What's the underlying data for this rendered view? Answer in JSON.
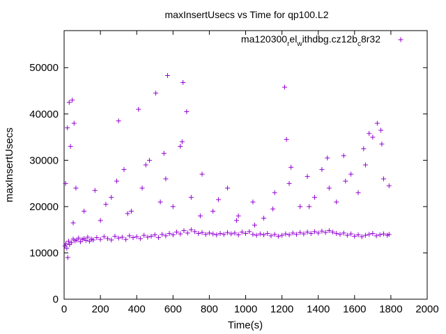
{
  "chart_data": {
    "type": "scatter",
    "title": "maxInsertUsecs vs Time for qp100.L2",
    "xlabel": "Time(s)",
    "ylabel": "maxInsertUsecs",
    "xlim": [
      0,
      2000
    ],
    "ylim": [
      0,
      58000
    ],
    "xticks": [
      "0",
      "200",
      "400",
      "600",
      "800",
      "1000",
      "1200",
      "1400",
      "1600",
      "1800",
      "2000"
    ],
    "yticks": [
      "0",
      "10000",
      "20000",
      "30000",
      "40000",
      "50000"
    ],
    "legend_position": "top-right",
    "marker": "+",
    "grid": false,
    "colors": {
      "series": "#9400d3",
      "axes": "#000000"
    },
    "series": [
      {
        "name_parts": {
          "a": "ma120300",
          "b": "r",
          "c": "el",
          "d": "w",
          "e": "ithdbg.cz12b",
          "f": "c",
          "g": "8r32"
        },
        "x": [
          5,
          10,
          15,
          20,
          25,
          30,
          40,
          50,
          60,
          70,
          80,
          90,
          100,
          110,
          120,
          130,
          140,
          150,
          160,
          180,
          200,
          220,
          240,
          260,
          280,
          300,
          320,
          340,
          360,
          380,
          400,
          420,
          440,
          460,
          480,
          500,
          520,
          540,
          560,
          580,
          600,
          620,
          640,
          660,
          680,
          700,
          720,
          740,
          760,
          780,
          800,
          820,
          840,
          860,
          880,
          900,
          920,
          940,
          960,
          980,
          1000,
          1020,
          1040,
          1060,
          1080,
          1100,
          1120,
          1140,
          1160,
          1180,
          1200,
          1220,
          1240,
          1260,
          1280,
          1300,
          1320,
          1340,
          1360,
          1380,
          1400,
          1420,
          1440,
          1460,
          1480,
          1500,
          1520,
          1540,
          1560,
          1580,
          1600,
          1620,
          1640,
          1660,
          1680,
          1700,
          1720,
          1740,
          1760,
          1780,
          1790,
          8,
          18,
          28,
          35,
          45,
          55,
          65,
          300,
          410,
          505,
          570,
          655,
          675,
          1215,
          1225,
          1680,
          1725,
          1745,
          200,
          260,
          330,
          370,
          430,
          470,
          530,
          560,
          600,
          640,
          700,
          760,
          820,
          900,
          960,
          1040,
          1100,
          1160,
          1240,
          1300,
          1340,
          1380,
          1420,
          1460,
          1500,
          1540,
          1580,
          1620,
          1660,
          1700,
          1760,
          1790,
          50,
          110,
          170,
          230,
          290,
          350,
          450,
          550,
          650,
          750,
          850,
          950,
          1050,
          1150,
          1250,
          1350,
          1450,
          1550,
          1650,
          1750
        ],
        "y": [
          11500,
          12000,
          11000,
          9000,
          12500,
          11800,
          12200,
          13000,
          12600,
          12800,
          13200,
          12400,
          12900,
          13100,
          12700,
          13400,
          12500,
          13000,
          12800,
          13300,
          12900,
          13500,
          13100,
          12800,
          13600,
          13200,
          13400,
          12900,
          13700,
          13300,
          13500,
          13100,
          13800,
          13400,
          13600,
          13900,
          13300,
          14000,
          13700,
          14200,
          13900,
          14500,
          14100,
          14800,
          14300,
          15000,
          14600,
          14200,
          14400,
          14000,
          14300,
          14100,
          13900,
          14200,
          14000,
          14400,
          14100,
          14300,
          13900,
          14500,
          14200,
          14600,
          14000,
          13800,
          14100,
          13900,
          14200,
          13700,
          14000,
          13600,
          13800,
          14100,
          13900,
          14300,
          14000,
          14400,
          14100,
          14500,
          14200,
          14600,
          14300,
          14700,
          14400,
          14800,
          14500,
          14200,
          14000,
          14300,
          13800,
          14100,
          13600,
          13900,
          13500,
          13800,
          14000,
          14200,
          13700,
          13900,
          14100,
          13800,
          14000,
          25000,
          37000,
          42500,
          33000,
          43000,
          38000,
          24000,
          38500,
          41000,
          44500,
          48300,
          46800,
          40500,
          45800,
          34500,
          35800,
          38000,
          36500,
          17000,
          22000,
          28000,
          19000,
          24000,
          30000,
          21000,
          26000,
          20000,
          33000,
          22000,
          27000,
          19000,
          24000,
          18000,
          21000,
          17500,
          23000,
          25000,
          20000,
          26500,
          22000,
          28000,
          24000,
          21000,
          31000,
          27000,
          23000,
          29000,
          35000,
          26000,
          24500,
          16500,
          19000,
          23500,
          20500,
          25500,
          18500,
          29000,
          31500,
          34000,
          18000,
          21500,
          17000,
          16000,
          19500,
          28500,
          20000,
          30500,
          25500,
          32500,
          33500
        ]
      }
    ]
  }
}
